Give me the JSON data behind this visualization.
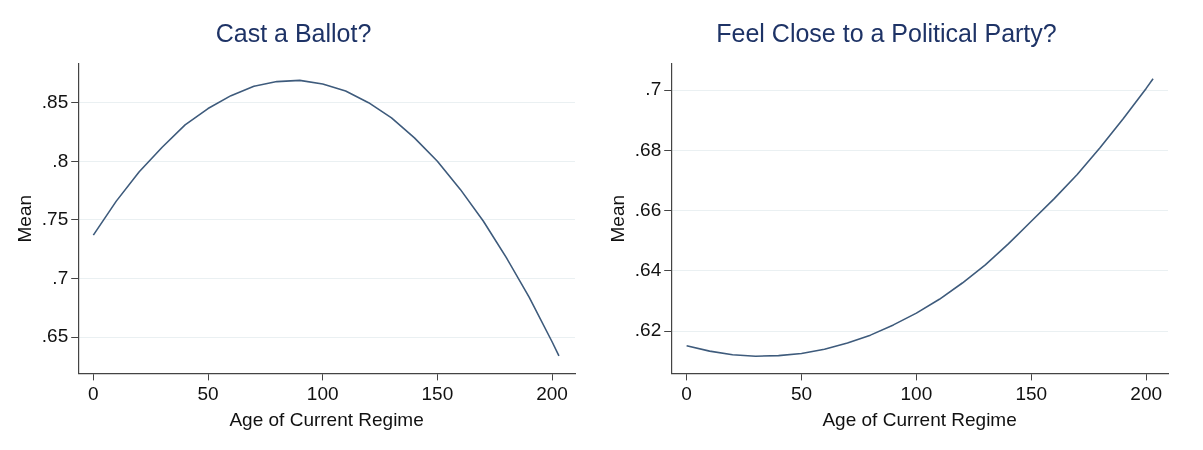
{
  "chart_data": [
    {
      "type": "line",
      "title": "Cast a Ballot?",
      "xlabel": "Age of Current Regime",
      "ylabel": "Mean",
      "color": "#3e5b7c",
      "x": [
        0,
        10,
        20,
        30,
        40,
        50,
        60,
        70,
        80,
        90,
        100,
        110,
        120,
        130,
        140,
        150,
        160,
        170,
        180,
        190,
        200,
        203
      ],
      "values": [
        0.737,
        0.766,
        0.791,
        0.812,
        0.831,
        0.845,
        0.856,
        0.864,
        0.868,
        0.869,
        0.866,
        0.86,
        0.85,
        0.837,
        0.82,
        0.8,
        0.776,
        0.749,
        0.718,
        0.684,
        0.646,
        0.634
      ],
      "xlim": [
        -6.6,
        210
      ],
      "ylim": [
        0.619,
        0.883
      ],
      "xticks": [
        0,
        50,
        100,
        150,
        200
      ],
      "yticks": [
        {
          "value": 0.65,
          "label": ".65"
        },
        {
          "value": 0.7,
          "label": ".7"
        },
        {
          "value": 0.75,
          "label": ".75"
        },
        {
          "value": 0.8,
          "label": ".8"
        },
        {
          "value": 0.85,
          "label": ".85"
        }
      ],
      "grid": "y"
    },
    {
      "type": "line",
      "title": "Feel Close to a Political Party?",
      "xlabel": "Age of Current Regime",
      "ylabel": "Mean",
      "color": "#3e5b7c",
      "x": [
        0,
        10,
        20,
        30,
        40,
        50,
        60,
        70,
        80,
        90,
        100,
        110,
        120,
        130,
        140,
        150,
        160,
        170,
        180,
        190,
        200,
        203
      ],
      "values": [
        0.6152,
        0.6134,
        0.6122,
        0.6117,
        0.6119,
        0.6126,
        0.614,
        0.6161,
        0.6187,
        0.6221,
        0.626,
        0.6306,
        0.636,
        0.642,
        0.649,
        0.6565,
        0.664,
        0.672,
        0.681,
        0.6905,
        0.7006,
        0.7038
      ],
      "xlim": [
        -6.7,
        209.5
      ],
      "ylim": [
        0.606,
        0.7087
      ],
      "xticks": [
        0,
        50,
        100,
        150,
        200
      ],
      "yticks": [
        {
          "value": 0.62,
          "label": ".62"
        },
        {
          "value": 0.64,
          "label": ".64"
        },
        {
          "value": 0.66,
          "label": ".66"
        },
        {
          "value": 0.68,
          "label": ".68"
        },
        {
          "value": 0.7,
          "label": ".7"
        }
      ],
      "grid": "y"
    }
  ]
}
